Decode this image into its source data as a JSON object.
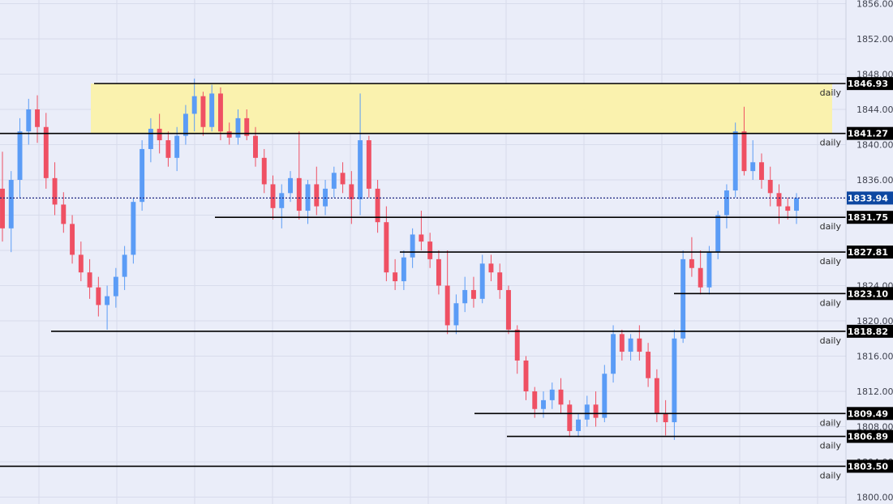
{
  "chart_data": {
    "type": "candlestick",
    "title": "",
    "ylim": [
      1800,
      1856
    ],
    "y_ticks": [
      "1800.00",
      "1804.00",
      "1808.00",
      "1812.00",
      "1816.00",
      "1820.00",
      "1824.00",
      "1828.00",
      "1832.00",
      "1836.00",
      "1840.00",
      "1844.00",
      "1848.00",
      "1852.00",
      "1856.00"
    ],
    "grid": true,
    "colors": {
      "background": "#eaedf9",
      "grid": "#d8dcec",
      "bull": "#5b9cf6",
      "bear": "#ef5063",
      "level_line": "#000000",
      "price_line": "#1a237e",
      "zone_fill": "#fbf2aa",
      "tag_level": "#000000",
      "tag_price": "#0d47a1"
    },
    "supply_zone": {
      "top": 1846.93,
      "bottom": 1841.27
    },
    "current_price": {
      "value": 1833.94,
      "label": "1833.94"
    },
    "levels": [
      {
        "value": 1846.93,
        "label": "1846.93",
        "tag": "daily"
      },
      {
        "value": 1841.27,
        "label": "1841.27",
        "tag": "daily"
      },
      {
        "value": 1831.75,
        "label": "1831.75",
        "tag": "daily"
      },
      {
        "value": 1827.81,
        "label": "1827.81",
        "tag": "daily"
      },
      {
        "value": 1823.1,
        "label": "1823.10",
        "tag": "daily"
      },
      {
        "value": 1818.82,
        "label": "1818.82",
        "tag": "daily"
      },
      {
        "value": 1809.49,
        "label": "1809.49",
        "tag": "daily"
      },
      {
        "value": 1806.89,
        "label": "1806.89",
        "tag": "daily"
      },
      {
        "value": 1803.5,
        "label": "1803.50",
        "tag": "daily"
      }
    ],
    "candles": [
      [
        1835.0,
        1839.2,
        1829.0,
        1830.5
      ],
      [
        1830.5,
        1837.0,
        1827.8,
        1836.0
      ],
      [
        1836.0,
        1843.0,
        1834.0,
        1841.5
      ],
      [
        1841.5,
        1845.2,
        1840.0,
        1844.0
      ],
      [
        1844.0,
        1845.6,
        1840.2,
        1842.0
      ],
      [
        1842.0,
        1843.6,
        1835.0,
        1836.2
      ],
      [
        1836.2,
        1838.0,
        1832.0,
        1833.2
      ],
      [
        1833.2,
        1834.6,
        1830.0,
        1831.0
      ],
      [
        1831.0,
        1832.0,
        1826.5,
        1827.5
      ],
      [
        1827.5,
        1829.0,
        1824.5,
        1825.5
      ],
      [
        1825.5,
        1827.0,
        1822.5,
        1823.8
      ],
      [
        1823.8,
        1825.0,
        1820.5,
        1821.8
      ],
      [
        1821.8,
        1824.0,
        1819.0,
        1822.8
      ],
      [
        1822.8,
        1826.0,
        1821.5,
        1825.0
      ],
      [
        1825.0,
        1828.5,
        1823.5,
        1827.5
      ],
      [
        1827.5,
        1834.0,
        1826.5,
        1833.5
      ],
      [
        1833.5,
        1840.5,
        1832.5,
        1839.5
      ],
      [
        1839.5,
        1843.0,
        1838.0,
        1841.8
      ],
      [
        1841.8,
        1843.5,
        1839.0,
        1840.5
      ],
      [
        1840.5,
        1841.5,
        1837.5,
        1838.5
      ],
      [
        1838.5,
        1842.0,
        1837.0,
        1841.0
      ],
      [
        1841.0,
        1844.5,
        1840.0,
        1843.5
      ],
      [
        1843.5,
        1847.5,
        1841.5,
        1845.5
      ],
      [
        1845.5,
        1846.0,
        1841.0,
        1842.0
      ],
      [
        1842.0,
        1846.8,
        1841.5,
        1845.8
      ],
      [
        1845.8,
        1846.5,
        1840.5,
        1841.5
      ],
      [
        1841.5,
        1842.5,
        1840.0,
        1840.8
      ],
      [
        1840.8,
        1844.0,
        1840.0,
        1843.0
      ],
      [
        1843.0,
        1844.0,
        1840.5,
        1841.0
      ],
      [
        1841.0,
        1842.0,
        1837.5,
        1838.5
      ],
      [
        1838.5,
        1839.5,
        1834.5,
        1835.5
      ],
      [
        1835.5,
        1836.5,
        1831.5,
        1832.8
      ],
      [
        1832.8,
        1835.5,
        1830.5,
        1834.5
      ],
      [
        1834.5,
        1837.0,
        1833.5,
        1836.2
      ],
      [
        1836.2,
        1841.5,
        1831.5,
        1832.5
      ],
      [
        1832.5,
        1836.0,
        1831.0,
        1835.5
      ],
      [
        1835.5,
        1837.5,
        1832.0,
        1833.0
      ],
      [
        1833.0,
        1836.0,
        1832.0,
        1835.0
      ],
      [
        1835.0,
        1837.5,
        1834.0,
        1836.8
      ],
      [
        1836.8,
        1838.0,
        1834.5,
        1835.5
      ],
      [
        1835.5,
        1837.0,
        1831.0,
        1833.8
      ],
      [
        1833.8,
        1845.8,
        1832.0,
        1840.5
      ],
      [
        1840.5,
        1841.0,
        1834.0,
        1835.0
      ],
      [
        1835.0,
        1836.0,
        1830.0,
        1831.2
      ],
      [
        1831.2,
        1833.0,
        1824.5,
        1825.5
      ],
      [
        1825.5,
        1827.0,
        1823.5,
        1824.5
      ],
      [
        1824.5,
        1828.0,
        1823.5,
        1827.2
      ],
      [
        1827.2,
        1830.5,
        1826.0,
        1829.8
      ],
      [
        1829.8,
        1832.5,
        1828.0,
        1829.0
      ],
      [
        1829.0,
        1830.0,
        1826.0,
        1827.0
      ],
      [
        1827.0,
        1828.0,
        1823.0,
        1824.0
      ],
      [
        1824.0,
        1828.0,
        1818.5,
        1819.5
      ],
      [
        1819.5,
        1823.0,
        1818.5,
        1822.0
      ],
      [
        1822.0,
        1825.0,
        1821.0,
        1823.5
      ],
      [
        1823.5,
        1825.0,
        1821.5,
        1822.5
      ],
      [
        1822.5,
        1827.5,
        1822.0,
        1826.5
      ],
      [
        1826.5,
        1827.5,
        1824.5,
        1825.5
      ],
      [
        1825.5,
        1826.5,
        1822.5,
        1823.5
      ],
      [
        1823.5,
        1824.0,
        1818.5,
        1819.0
      ],
      [
        1819.0,
        1819.5,
        1814.0,
        1815.5
      ],
      [
        1815.5,
        1816.0,
        1811.0,
        1812.0
      ],
      [
        1812.0,
        1812.5,
        1809.0,
        1810.0
      ],
      [
        1810.0,
        1812.0,
        1809.0,
        1811.0
      ],
      [
        1811.0,
        1813.0,
        1810.0,
        1812.2
      ],
      [
        1812.2,
        1813.5,
        1809.5,
        1810.5
      ],
      [
        1810.5,
        1811.0,
        1806.8,
        1807.5
      ],
      [
        1807.5,
        1809.5,
        1806.8,
        1808.8
      ],
      [
        1808.8,
        1811.5,
        1808.0,
        1810.5
      ],
      [
        1810.5,
        1812.0,
        1808.0,
        1809.0
      ],
      [
        1809.0,
        1815.0,
        1808.5,
        1814.0
      ],
      [
        1814.0,
        1819.5,
        1813.0,
        1818.5
      ],
      [
        1818.5,
        1819.0,
        1815.5,
        1816.5
      ],
      [
        1816.5,
        1818.5,
        1815.5,
        1818.0
      ],
      [
        1818.0,
        1819.5,
        1815.5,
        1816.5
      ],
      [
        1816.5,
        1817.5,
        1812.5,
        1813.5
      ],
      [
        1813.5,
        1814.5,
        1808.5,
        1809.5
      ],
      [
        1809.5,
        1811.0,
        1807.0,
        1808.5
      ],
      [
        1808.5,
        1819.0,
        1806.5,
        1818.0
      ],
      [
        1818.0,
        1828.0,
        1817.5,
        1827.0
      ],
      [
        1827.0,
        1829.5,
        1825.0,
        1826.0
      ],
      [
        1826.0,
        1828.0,
        1823.0,
        1823.8
      ],
      [
        1823.8,
        1828.5,
        1823.0,
        1827.8
      ],
      [
        1827.8,
        1832.5,
        1827.0,
        1832.0
      ],
      [
        1832.0,
        1835.5,
        1830.5,
        1834.8
      ],
      [
        1834.8,
        1842.5,
        1834.0,
        1841.5
      ],
      [
        1841.5,
        1844.3,
        1836.5,
        1837.0
      ],
      [
        1837.0,
        1840.5,
        1836.0,
        1838.0
      ],
      [
        1838.0,
        1839.0,
        1835.0,
        1836.0
      ],
      [
        1836.0,
        1837.5,
        1833.0,
        1834.5
      ],
      [
        1834.5,
        1835.5,
        1831.0,
        1833.0
      ],
      [
        1833.0,
        1834.0,
        1831.5,
        1832.5
      ],
      [
        1832.5,
        1834.5,
        1831.0,
        1833.94
      ]
    ]
  }
}
